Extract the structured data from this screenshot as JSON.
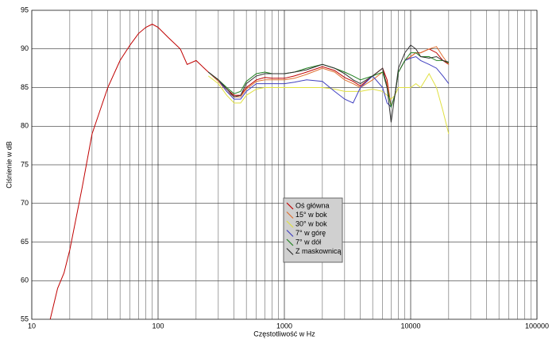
{
  "chart_data": {
    "type": "line",
    "x_label": "Częstotliwość w Hz",
    "y_label": "Ciśnienie w dB",
    "log_x": true,
    "grid": true,
    "xlim": [
      10,
      100000
    ],
    "xticks": [
      10,
      100,
      1000,
      10000,
      100000
    ],
    "ylim": [
      55,
      95
    ],
    "yticks": [
      55,
      60,
      65,
      70,
      75,
      80,
      85,
      90,
      95
    ],
    "legend_position": "center",
    "x": [
      14,
      16,
      18,
      20,
      25,
      30,
      40,
      50,
      60,
      70,
      80,
      90,
      100,
      120,
      150,
      170,
      200,
      250,
      300,
      350,
      400,
      450,
      500,
      600,
      700,
      800,
      1000,
      1200,
      1500,
      2000,
      2500,
      3000,
      3500,
      4000,
      5000,
      6000,
      6500,
      7000,
      7500,
      8000,
      9000,
      10000,
      11000,
      12000,
      14000,
      16000,
      18000,
      20000
    ],
    "series": [
      {
        "name": "Oś główna",
        "color": "#c00000",
        "values": [
          55,
          59,
          61,
          64,
          72,
          79,
          85,
          88.5,
          90.5,
          92,
          92.8,
          93.2,
          92.8,
          91.5,
          90,
          88,
          88.5,
          87,
          86,
          84.8,
          84,
          84,
          85,
          86,
          86.3,
          86.2,
          86.2,
          86.5,
          87,
          87.7,
          87.2,
          86.3,
          85.8,
          85.2,
          86.5,
          87.5,
          86,
          82.5,
          84,
          87,
          88.5,
          89,
          89.5,
          89.5,
          90,
          89.5,
          88.5,
          88
        ]
      },
      {
        "name": "15° w bok",
        "color": "#e07030",
        "values": [
          null,
          null,
          null,
          null,
          null,
          null,
          null,
          null,
          null,
          null,
          null,
          null,
          null,
          null,
          null,
          null,
          null,
          87,
          85.8,
          84.5,
          83.8,
          83.8,
          84.8,
          85.8,
          86,
          86,
          86,
          86.2,
          86.7,
          87.5,
          87,
          86,
          85.5,
          85,
          86,
          87,
          85.5,
          82.5,
          84,
          87,
          88.5,
          89,
          89.5,
          89.5,
          90,
          90.3,
          89,
          88
        ]
      },
      {
        "name": "30° w bok",
        "color": "#e0e040",
        "values": [
          null,
          null,
          null,
          null,
          null,
          null,
          null,
          null,
          null,
          null,
          null,
          null,
          null,
          null,
          null,
          null,
          null,
          86.5,
          85.5,
          84,
          83,
          83,
          84,
          84.8,
          85,
          85,
          85,
          85,
          85,
          85,
          84.8,
          84.5,
          84.5,
          84.5,
          84.8,
          84.5,
          84,
          83.5,
          84,
          85,
          85,
          85,
          85.5,
          85,
          86.8,
          85,
          82,
          79
        ]
      },
      {
        "name": "7° w górę",
        "color": "#4040c0",
        "values": [
          null,
          null,
          null,
          null,
          null,
          null,
          null,
          null,
          null,
          null,
          null,
          null,
          null,
          null,
          null,
          null,
          null,
          87,
          86,
          84.5,
          83.5,
          83.5,
          84.5,
          85.5,
          85.5,
          85.5,
          85.5,
          85.7,
          86,
          85.8,
          84.5,
          83.5,
          83,
          85,
          86.5,
          85,
          83,
          82.5,
          84,
          87,
          88.5,
          88.8,
          89,
          88.5,
          88,
          87.5,
          86.5,
          85.5
        ]
      },
      {
        "name": "7° w dół",
        "color": "#208020",
        "values": [
          null,
          null,
          null,
          null,
          null,
          null,
          null,
          null,
          null,
          null,
          null,
          null,
          null,
          null,
          null,
          null,
          null,
          87,
          86,
          85,
          84.2,
          84.5,
          85.8,
          86.8,
          87,
          86.8,
          86.8,
          87,
          87.5,
          88,
          87.5,
          87,
          86.5,
          86,
          86.5,
          87,
          85,
          82.5,
          84,
          87,
          88.5,
          89.5,
          89.5,
          89,
          89,
          88.5,
          88.5,
          88.2
        ]
      },
      {
        "name": "Z maskownicą",
        "color": "#303030",
        "values": [
          null,
          null,
          null,
          null,
          null,
          null,
          null,
          null,
          null,
          null,
          null,
          null,
          null,
          null,
          null,
          null,
          null,
          87,
          86,
          84.8,
          83.8,
          84,
          85.5,
          86.5,
          86.8,
          86.8,
          86.8,
          87,
          87.3,
          88,
          87.5,
          86.8,
          86,
          85.5,
          86.5,
          87.5,
          85,
          80.5,
          84,
          87.5,
          89.5,
          90.5,
          90,
          89,
          88.8,
          89,
          88.5,
          88.3
        ]
      }
    ]
  }
}
